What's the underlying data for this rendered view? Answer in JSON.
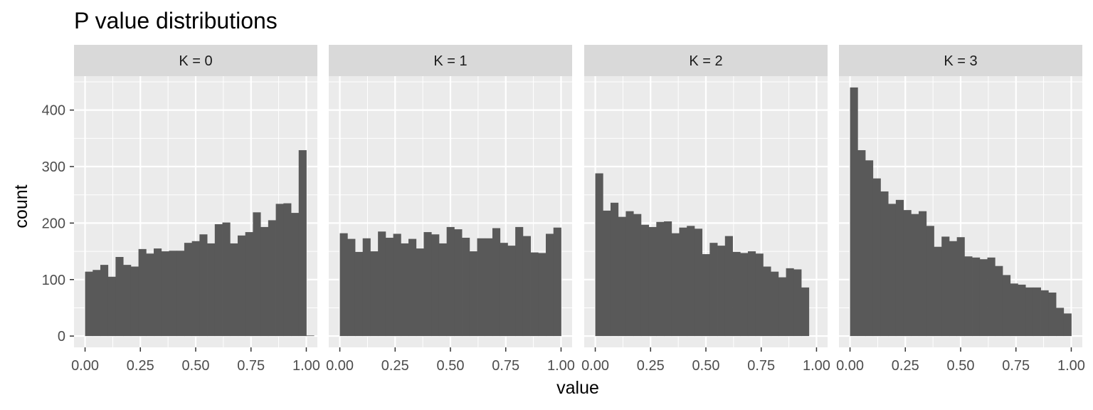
{
  "chart_data": {
    "type": "bar",
    "title": "P value distributions",
    "xlabel": "value",
    "ylabel": "count",
    "xlim": [
      -0.05,
      1.05
    ],
    "ylim": [
      -20,
      460
    ],
    "x_ticks": [
      "0.00",
      "0.25",
      "0.50",
      "0.75",
      "1.00"
    ],
    "x_tick_values": [
      0,
      0.25,
      0.5,
      0.75,
      1.0
    ],
    "y_ticks": [
      "0",
      "100",
      "200",
      "300",
      "400"
    ],
    "y_tick_values": [
      0,
      100,
      200,
      300,
      400
    ],
    "bin_width": 0.0345,
    "grid": true,
    "colors": {
      "bar": "#595959",
      "panel_bg": "#ebebeb",
      "grid": "#ffffff",
      "strip_bg": "#d9d9d9",
      "tick": "#4d4d4d"
    },
    "panels": [
      {
        "strip_label": "K = 0",
        "x": [
          0,
          0.0345,
          0.069,
          0.1034,
          0.1379,
          0.1724,
          0.2069,
          0.2414,
          0.2759,
          0.3103,
          0.3448,
          0.3793,
          0.4138,
          0.4483,
          0.4828,
          0.5172,
          0.5517,
          0.5862,
          0.6207,
          0.6552,
          0.6897,
          0.7241,
          0.7586,
          0.7931,
          0.8276,
          0.8621,
          0.8966,
          0.931,
          0.9655,
          1.0
        ],
        "values": [
          114,
          117,
          126,
          105,
          140,
          126,
          123,
          154,
          146,
          155,
          150,
          151,
          151,
          165,
          168,
          180,
          164,
          198,
          201,
          164,
          178,
          184,
          219,
          193,
          205,
          234,
          235,
          218,
          329,
          1
        ]
      },
      {
        "strip_label": "K = 1",
        "x": [
          0,
          0.0345,
          0.069,
          0.1034,
          0.1379,
          0.1724,
          0.2069,
          0.2414,
          0.2759,
          0.3103,
          0.3448,
          0.3793,
          0.4138,
          0.4483,
          0.4828,
          0.5172,
          0.5517,
          0.5862,
          0.6207,
          0.6552,
          0.6897,
          0.7241,
          0.7586,
          0.7931,
          0.8276,
          0.8621,
          0.8966,
          0.931,
          0.9655
        ],
        "values": [
          182,
          172,
          149,
          173,
          150,
          185,
          174,
          181,
          164,
          172,
          155,
          184,
          180,
          164,
          193,
          189,
          174,
          150,
          173,
          173,
          191,
          165,
          160,
          193,
          177,
          148,
          147,
          181,
          192
        ]
      },
      {
        "strip_label": "K = 2",
        "x": [
          0,
          0.0345,
          0.069,
          0.1034,
          0.1379,
          0.1724,
          0.2069,
          0.2414,
          0.2759,
          0.3103,
          0.3448,
          0.3793,
          0.4138,
          0.4483,
          0.4828,
          0.5172,
          0.5517,
          0.5862,
          0.6207,
          0.6552,
          0.6897,
          0.7241,
          0.7586,
          0.7931,
          0.8276,
          0.8621,
          0.8966,
          0.931,
          0.9655
        ],
        "values": [
          288,
          222,
          236,
          211,
          221,
          216,
          197,
          193,
          202,
          203,
          182,
          192,
          195,
          190,
          145,
          165,
          160,
          177,
          149,
          147,
          150,
          146,
          123,
          114,
          104,
          120,
          118,
          86,
          0
        ]
      },
      {
        "strip_label": "K = 3",
        "x": [
          0,
          0.0345,
          0.069,
          0.1034,
          0.1379,
          0.1724,
          0.2069,
          0.2414,
          0.2759,
          0.3103,
          0.3448,
          0.3793,
          0.4138,
          0.4483,
          0.4828,
          0.5172,
          0.5517,
          0.5862,
          0.6207,
          0.6552,
          0.6897,
          0.7241,
          0.7586,
          0.7931,
          0.8276,
          0.8621,
          0.8966,
          0.931,
          0.9655
        ],
        "values": [
          440,
          329,
          311,
          279,
          256,
          234,
          241,
          223,
          216,
          221,
          195,
          158,
          176,
          168,
          175,
          141,
          139,
          136,
          139,
          124,
          108,
          93,
          91,
          86,
          86,
          81,
          77,
          50,
          40
        ]
      }
    ]
  }
}
